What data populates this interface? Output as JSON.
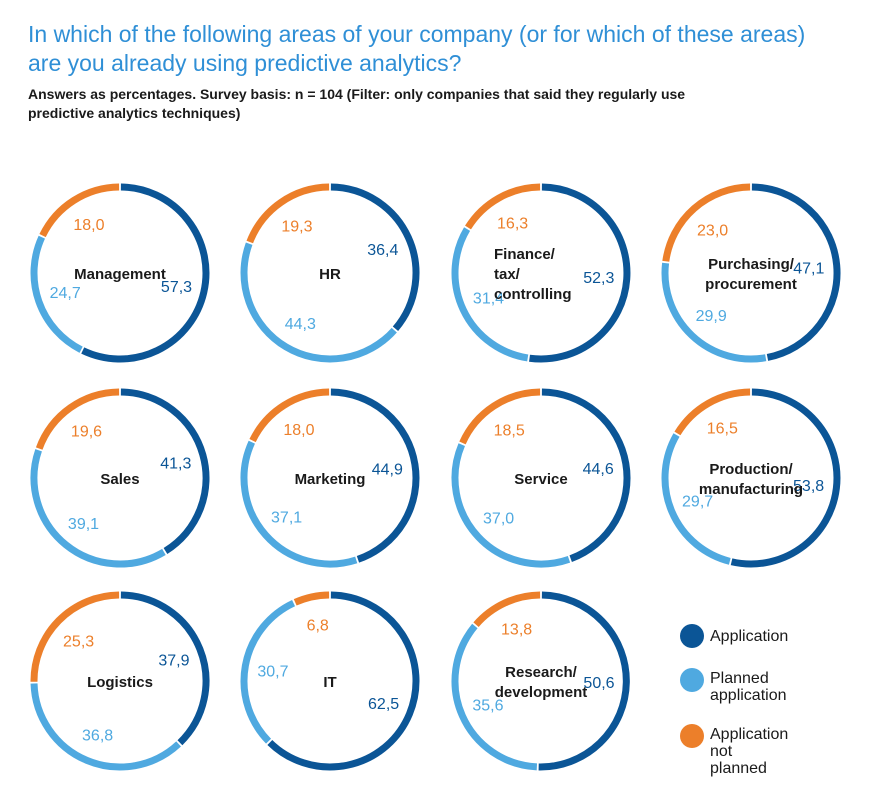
{
  "title": "In which of the following areas of your company (or for which of these areas) are you already using predictive analytics?",
  "subtitle": "Answers as percentages. Survey basis: n = 104 (Filter: only companies that said they regularly use predictive analytics techniques)",
  "colors": {
    "application": "#0b5596",
    "planned": "#4fa9e0",
    "not_planned": "#ec7f2a"
  },
  "legend": [
    {
      "key": "application",
      "label": "Application"
    },
    {
      "key": "planned",
      "label": "Planned\napplication"
    },
    {
      "key": "not_planned",
      "label": "Application\nnot planned"
    }
  ],
  "chart_data": {
    "type": "pie",
    "variant": "donut-small-multiples",
    "series_names": [
      "Application",
      "Planned application",
      "Application not planned"
    ],
    "charts": [
      {
        "label": "Management",
        "application": 57.3,
        "planned": 24.7,
        "not_planned": 18.0,
        "display": {
          "application": "57,3",
          "planned": "24,7",
          "not_planned": "18,0"
        }
      },
      {
        "label": "HR",
        "application": 36.4,
        "planned": 44.3,
        "not_planned": 19.3,
        "display": {
          "application": "36,4",
          "planned": "44,3",
          "not_planned": "19,3"
        }
      },
      {
        "label": "Finance/\ntax/\ncontrolling",
        "application": 52.3,
        "planned": 31.4,
        "not_planned": 16.3,
        "display": {
          "application": "52,3",
          "planned": "31,4",
          "not_planned": "16,3"
        }
      },
      {
        "label": "Purchasing/\nprocurement",
        "application": 47.1,
        "planned": 29.9,
        "not_planned": 23.0,
        "display": {
          "application": "47,1",
          "planned": "29,9",
          "not_planned": "23,0"
        }
      },
      {
        "label": "Sales",
        "application": 41.3,
        "planned": 39.1,
        "not_planned": 19.6,
        "display": {
          "application": "41,3",
          "planned": "39,1",
          "not_planned": "19,6"
        }
      },
      {
        "label": "Marketing",
        "application": 44.9,
        "planned": 37.1,
        "not_planned": 18.0,
        "display": {
          "application": "44,9",
          "planned": "37,1",
          "not_planned": "18,0"
        }
      },
      {
        "label": "Service",
        "application": 44.6,
        "planned": 37.0,
        "not_planned": 18.5,
        "display": {
          "application": "44,6",
          "planned": "37,0",
          "not_planned": "18,5"
        }
      },
      {
        "label": "Production/\nmanufacturing",
        "application": 53.8,
        "planned": 29.7,
        "not_planned": 16.5,
        "display": {
          "application": "53,8",
          "planned": "29,7",
          "not_planned": "16,5"
        }
      },
      {
        "label": "Logistics",
        "application": 37.9,
        "planned": 36.8,
        "not_planned": 25.3,
        "display": {
          "application": "37,9",
          "planned": "36,8",
          "not_planned": "25,3"
        }
      },
      {
        "label": "IT",
        "application": 62.5,
        "planned": 30.7,
        "not_planned": 6.8,
        "display": {
          "application": "62,5",
          "planned": "30,7",
          "not_planned": "6,8"
        }
      },
      {
        "label": "Research/\ndevelopment",
        "application": 50.6,
        "planned": 35.6,
        "not_planned": 13.8,
        "display": {
          "application": "50,6",
          "planned": "35,6",
          "not_planned": "13,8"
        }
      }
    ]
  }
}
